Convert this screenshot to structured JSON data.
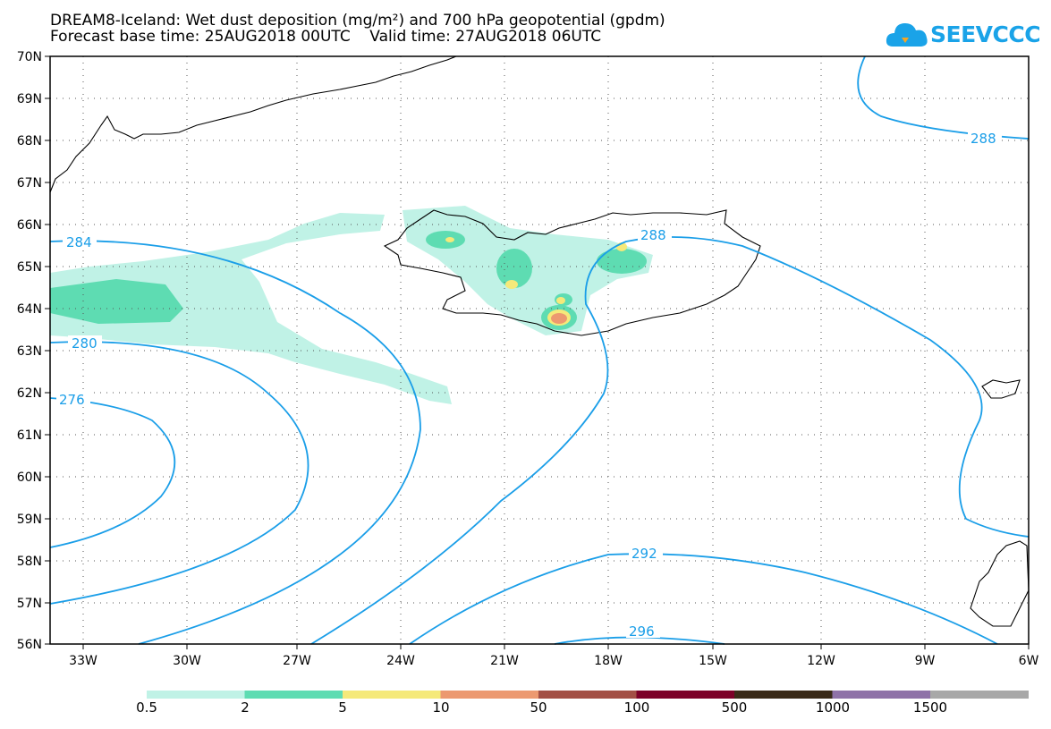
{
  "header": {
    "title_line1": "DREAM8-Iceland: Wet dust deposition (mg/m²) and 700 hPa geopotential (gpdm)",
    "title_line2": "Forecast base time: 25AUG2018 00UTC    Valid time: 27AUG2018 06UTC"
  },
  "logo": {
    "text": "SEEVCCC",
    "icon": "cloud-icon"
  },
  "map": {
    "lat_labels": [
      "70N",
      "69N",
      "68N",
      "67N",
      "66N",
      "65N",
      "64N",
      "63N",
      "62N",
      "61N",
      "60N",
      "59N",
      "58N",
      "57N",
      "56N"
    ],
    "lon_labels": [
      "33W",
      "30W",
      "27W",
      "24W",
      "21W",
      "18W",
      "15W",
      "12W",
      "9W",
      "6W"
    ],
    "contour_labels": [
      "284",
      "280",
      "276",
      "288",
      "288",
      "292",
      "296"
    ]
  },
  "colorbar": {
    "labels": [
      "0.5",
      "2",
      "5",
      "10",
      "50",
      "100",
      "500",
      "1000",
      "1500"
    ],
    "colors": [
      "#c0f2e6",
      "#5edcb2",
      "#f5e97a",
      "#ec9970",
      "#a34f45",
      "#7c0028",
      "#3a2a18",
      "#8f72a8",
      "#a8a8a8"
    ]
  },
  "colors": {
    "contour": "#1a9ee8",
    "coast": "#000000"
  }
}
